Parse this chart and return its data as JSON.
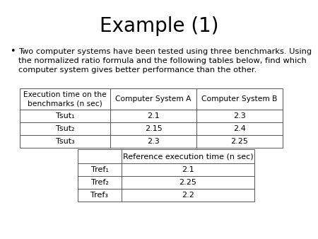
{
  "title": "Example (1)",
  "bullet_text_lines": [
    "Two computer systems have been tested using three benchmarks. Using",
    "the normalized ratio formula and the following tables below, find which",
    "computer system gives better performance than the other."
  ],
  "table1_headers": [
    "Execution time on the\nbenchmarks (n sec)",
    "Computer System A",
    "Computer System B"
  ],
  "table1_rows": [
    [
      "Tsut₁",
      "2.1",
      "2.3"
    ],
    [
      "Tsut₂",
      "2.15",
      "2.4"
    ],
    [
      "Tsut₃",
      "2.3",
      "2.25"
    ]
  ],
  "table2_header_col1": "",
  "table2_header_col2": "Reference execution time (n sec)",
  "table2_rows": [
    [
      "Tref₁",
      "2.1"
    ],
    [
      "Tref₂",
      "2.25"
    ],
    [
      "Tref₃",
      "2.2"
    ]
  ],
  "background_color": "#ffffff",
  "text_color": "#000000",
  "title_fontsize": 20,
  "body_fontsize": 8.2,
  "table_fontsize": 8.0
}
